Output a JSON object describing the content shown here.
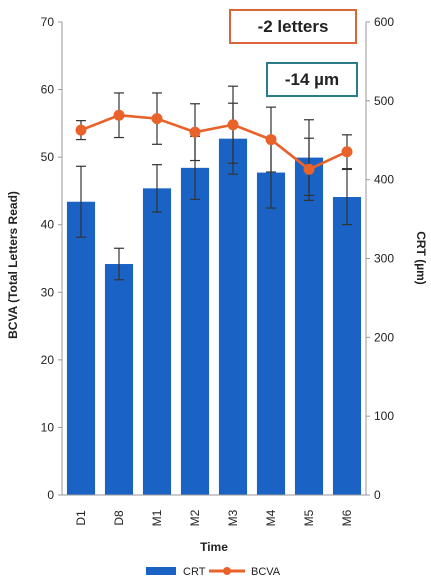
{
  "chart_data": {
    "type": "bar",
    "title": "",
    "xlabel": "Time",
    "ylabel_left": "BCVA (Total Letters Read)",
    "ylabel_right": "CRT (µm)",
    "categories": [
      "D1",
      "D8",
      "M1",
      "M2",
      "M3",
      "M4",
      "M5",
      "M6"
    ],
    "left_axis": {
      "min": 0,
      "max": 70,
      "ticks": [
        "0",
        "10",
        "20",
        "30",
        "40",
        "50",
        "60",
        "70"
      ]
    },
    "right_axis": {
      "min": 0,
      "max": 600,
      "ticks": [
        "0",
        "100",
        "200",
        "300",
        "400",
        "500",
        "600"
      ]
    },
    "grid": false,
    "legend_position": "bottom",
    "series": [
      {
        "name": "CRT",
        "type": "bar",
        "axis": "right",
        "color": "#1a63c4",
        "values": [
          372,
          293,
          389,
          415,
          452,
          409,
          428,
          378
        ],
        "error": [
          45,
          20,
          30,
          40,
          45,
          45,
          48,
          35
        ]
      },
      {
        "name": "BCVA",
        "type": "line",
        "axis": "left",
        "color": "#e8622a",
        "values": [
          54,
          56.2,
          55.7,
          53.7,
          54.8,
          52.6,
          48.2,
          50.8
        ],
        "error": [
          1.4,
          3.3,
          3.8,
          4.2,
          5.7,
          4.8,
          4.6,
          2.5
        ]
      }
    ],
    "annotations": [
      {
        "text": "-2 letters",
        "border_color": "#d9663a"
      },
      {
        "text": "-14 µm",
        "border_color": "#2a7c8a"
      }
    ]
  }
}
